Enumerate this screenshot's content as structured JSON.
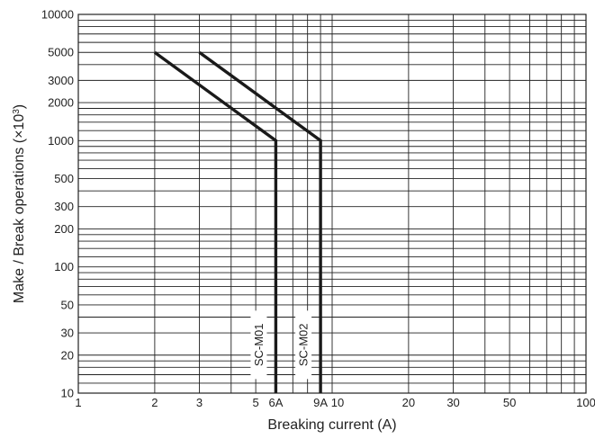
{
  "chart_data": {
    "type": "line",
    "title": "",
    "xlabel": "Breaking current (A)",
    "ylabel_main": "Make / Break operations (×10",
    "ylabel_exp": "3",
    "ylabel_close": ")",
    "x_scale": "log",
    "y_scale": "log",
    "xlim": [
      1,
      100
    ],
    "ylim": [
      10,
      10000
    ],
    "grid": true,
    "x_ticks": [
      {
        "value": 1,
        "label": "1"
      },
      {
        "value": 2,
        "label": "2"
      },
      {
        "value": 3,
        "label": "3"
      },
      {
        "value": 5,
        "label": "5"
      },
      {
        "value": 6,
        "label": "6A"
      },
      {
        "value": 9,
        "label": "9A"
      },
      {
        "value": 10.5,
        "label": "10"
      },
      {
        "value": 20,
        "label": "20"
      },
      {
        "value": 30,
        "label": "30"
      },
      {
        "value": 50,
        "label": "50"
      },
      {
        "value": 100,
        "label": "100"
      }
    ],
    "y_ticks": [
      {
        "value": 10,
        "label": "10"
      },
      {
        "value": 20,
        "label": "20"
      },
      {
        "value": 30,
        "label": "30"
      },
      {
        "value": 50,
        "label": "50"
      },
      {
        "value": 100,
        "label": "100"
      },
      {
        "value": 200,
        "label": "200"
      },
      {
        "value": 300,
        "label": "300"
      },
      {
        "value": 500,
        "label": "500"
      },
      {
        "value": 1000,
        "label": "1000"
      },
      {
        "value": 2000,
        "label": "2000"
      },
      {
        "value": 3000,
        "label": "3000"
      },
      {
        "value": 5000,
        "label": "5000"
      },
      {
        "value": 10000,
        "label": "10000"
      }
    ],
    "series": [
      {
        "name": "SC-M01",
        "points": [
          {
            "x": 2,
            "y": 5000
          },
          {
            "x": 6,
            "y": 1000
          },
          {
            "x": 6,
            "y": 10
          }
        ]
      },
      {
        "name": "SC-M02",
        "points": [
          {
            "x": 3,
            "y": 5000
          },
          {
            "x": 9,
            "y": 1000
          },
          {
            "x": 9,
            "y": 10
          }
        ]
      }
    ],
    "colors": {
      "line": "#1a1a1a",
      "grid": "#222222",
      "text": "#222222"
    }
  }
}
